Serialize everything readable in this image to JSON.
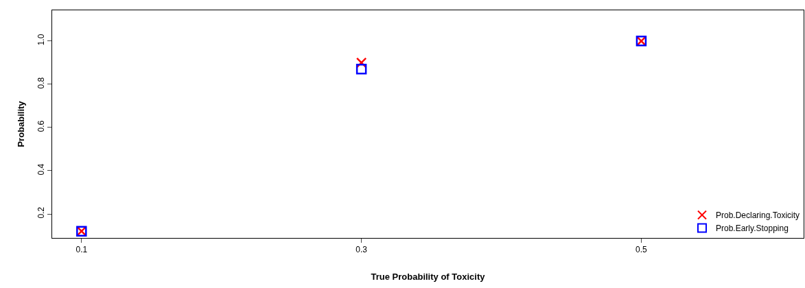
{
  "chart_data": {
    "type": "scatter",
    "xlabel": "True Probability of Toxicity",
    "ylabel": "Probability",
    "x": [
      0.1,
      0.3,
      0.5
    ],
    "series": [
      {
        "name": "Prob.Declaring.Toxicity",
        "color": "#ff0000",
        "marker": "cross",
        "values": [
          0.12,
          0.9,
          1.0
        ]
      },
      {
        "name": "Prob.Early.Stopping",
        "color": "#0000ff",
        "marker": "square",
        "values": [
          0.12,
          0.87,
          1.0
        ]
      }
    ],
    "xlim": [
      0.079,
      0.616
    ],
    "xticks": [
      0.1,
      0.3,
      0.5
    ],
    "ylim": [
      0.089,
      1.142
    ],
    "yticks": [
      {
        "value": 0.2,
        "label": "0.2"
      },
      {
        "value": 0.4,
        "label": "0.4"
      },
      {
        "value": 0.6,
        "label": "0.6"
      },
      {
        "value": 0.8,
        "label": "0.8"
      },
      {
        "value": 1.0,
        "label": "1.0"
      }
    ],
    "legend": "bottom right"
  }
}
